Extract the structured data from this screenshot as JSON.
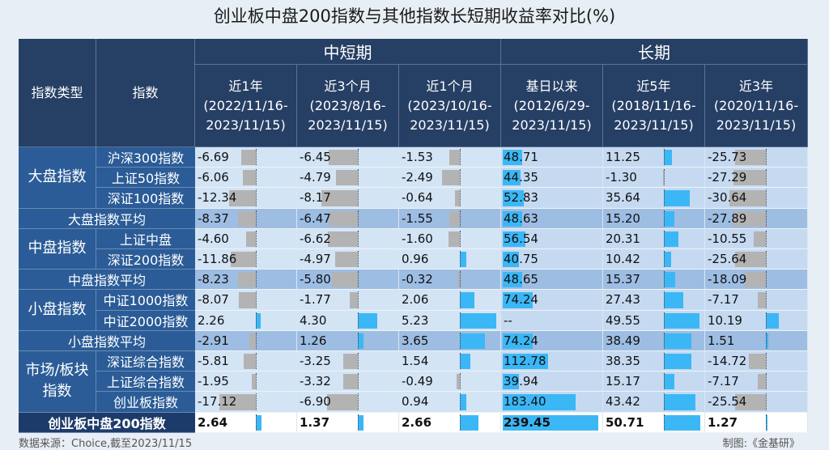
{
  "title": "创业板中盘200指数与其他指数长短期收益率对比(%)",
  "headers": {
    "type_col": "指数类型",
    "name_col": "指数",
    "group_short": "中短期",
    "group_long": "长期",
    "periods": [
      {
        "label": "近1年",
        "range": "(2022/11/16-\n2023/11/15)"
      },
      {
        "label": "近3个月",
        "range": "(2023/8/16-\n2023/11/15)"
      },
      {
        "label": "近1个月",
        "range": "(2023/10/16-\n2023/11/15)"
      },
      {
        "label": "基日以来",
        "range": "(2012/6/29-\n2023/11/15)"
      },
      {
        "label": "近5年",
        "range": "(2018/11/16-\n2023/11/15)"
      },
      {
        "label": "近3年",
        "range": "(2020/11/16-\n2023/11/15)"
      }
    ]
  },
  "groups": [
    {
      "label": "大盘指数",
      "rows": [
        0,
        1,
        2
      ]
    },
    {
      "label": "中盘指数",
      "rows": [
        4,
        5
      ]
    },
    {
      "label": "小盘指数",
      "rows": [
        7,
        8
      ]
    },
    {
      "label": "市场/板块\n指数",
      "rows": [
        10,
        11,
        12
      ]
    }
  ],
  "rows": [
    {
      "name": "沪深300指数",
      "kind": "index",
      "values": [
        "-6.69",
        "-6.45",
        "-1.53",
        "48.71",
        "11.25",
        "-25.73"
      ]
    },
    {
      "name": "上证50指数",
      "kind": "index",
      "values": [
        "-6.06",
        "-4.79",
        "-2.49",
        "44.35",
        "-1.30",
        "-27.29"
      ]
    },
    {
      "name": "深证100指数",
      "kind": "index",
      "values": [
        "-12.34",
        "-8.17",
        "-0.64",
        "52.83",
        "35.64",
        "-30.64"
      ]
    },
    {
      "name": "大盘指数平均",
      "kind": "avg",
      "values": [
        "-8.37",
        "-6.47",
        "-1.55",
        "48.63",
        "15.20",
        "-27.89"
      ]
    },
    {
      "name": "上证中盘",
      "kind": "index",
      "values": [
        "-4.60",
        "-6.62",
        "-1.60",
        "56.54",
        "20.31",
        "-10.55"
      ]
    },
    {
      "name": "深证200指数",
      "kind": "index",
      "values": [
        "-11.86",
        "-4.97",
        "0.96",
        "40.75",
        "10.42",
        "-25.64"
      ]
    },
    {
      "name": "中盘指数平均",
      "kind": "avg",
      "values": [
        "-8.23",
        "-5.80",
        "-0.32",
        "48.65",
        "15.37",
        "-18.09"
      ]
    },
    {
      "name": "中证1000指数",
      "kind": "index",
      "values": [
        "-8.07",
        "-1.77",
        "2.06",
        "74.24",
        "27.43",
        "-7.17"
      ]
    },
    {
      "name": "中证2000指数",
      "kind": "index",
      "values": [
        "2.26",
        "4.30",
        "5.23",
        "--",
        "49.55",
        "10.19"
      ]
    },
    {
      "name": "小盘指数平均",
      "kind": "avg",
      "values": [
        "-2.91",
        "1.26",
        "3.65",
        "74.24",
        "38.49",
        "1.51"
      ]
    },
    {
      "name": "深证综合指数",
      "kind": "index",
      "values": [
        "-5.81",
        "-3.25",
        "1.54",
        "112.78",
        "38.35",
        "-14.72"
      ]
    },
    {
      "name": "上证综合指数",
      "kind": "index",
      "values": [
        "-1.95",
        "-3.32",
        "-0.49",
        "39.94",
        "15.17",
        "-7.17"
      ]
    },
    {
      "name": "创业板指数",
      "kind": "index",
      "values": [
        "-17.12",
        "-6.90",
        "0.94",
        "183.40",
        "43.42",
        "-25.54"
      ]
    },
    {
      "name": "创业板中盘200指数",
      "kind": "final",
      "values": [
        "2.64",
        "1.37",
        "2.66",
        "239.45",
        "50.71",
        "1.27"
      ]
    }
  ],
  "source": "数据来源：Choice,截至2023/11/15",
  "credit": "制图:《金基研》"
}
